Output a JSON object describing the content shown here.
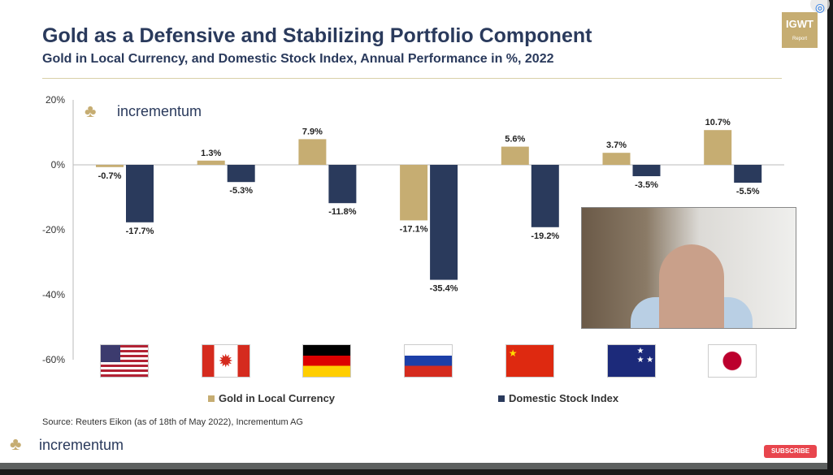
{
  "title": "Gold as a Defensive and Stabilizing Portfolio Component",
  "subtitle": "Gold in Local Currency, and Domestic Stock Index, Annual Performance in %, 2022",
  "brand": "incrementum",
  "badge": {
    "text": "IGWT",
    "sub": "Report"
  },
  "source": "Source: Reuters Eikon (as of 18th of May 2022), Incrementum AG",
  "subscribe_label": "SUBSCRIBE",
  "colors": {
    "gold": "#c6ad72",
    "stock": "#2a3a5c"
  },
  "chart_data": {
    "type": "bar",
    "categories": [
      "USA",
      "Canada",
      "Germany",
      "Russia",
      "China",
      "Australia",
      "Japan"
    ],
    "category_icons": [
      "us-flag",
      "canada-flag",
      "germany-flag",
      "russia-flag",
      "china-flag",
      "australia-flag",
      "japan-flag"
    ],
    "series": [
      {
        "name": "Gold in Local Currency",
        "values": [
          -0.7,
          1.3,
          7.9,
          -17.1,
          5.6,
          3.7,
          10.7
        ],
        "labels": [
          "-0.7%",
          "1.3%",
          "7.9%",
          "-17.1%",
          "5.6%",
          "3.7%",
          "10.7%"
        ]
      },
      {
        "name": "Domestic Stock Index",
        "values": [
          -17.7,
          -5.3,
          -11.8,
          -35.4,
          -19.2,
          -3.5,
          -5.5
        ],
        "labels": [
          "-17.7%",
          "-5.3%",
          "-11.8%",
          "-35.4%",
          "-19.2%",
          "-3.5%",
          "-5.5%"
        ]
      }
    ],
    "yticks": [
      "20%",
      "0%",
      "-20%",
      "-40%",
      "-60%"
    ],
    "ylim": [
      -60,
      20
    ],
    "legend": "bottom",
    "grid": false
  }
}
